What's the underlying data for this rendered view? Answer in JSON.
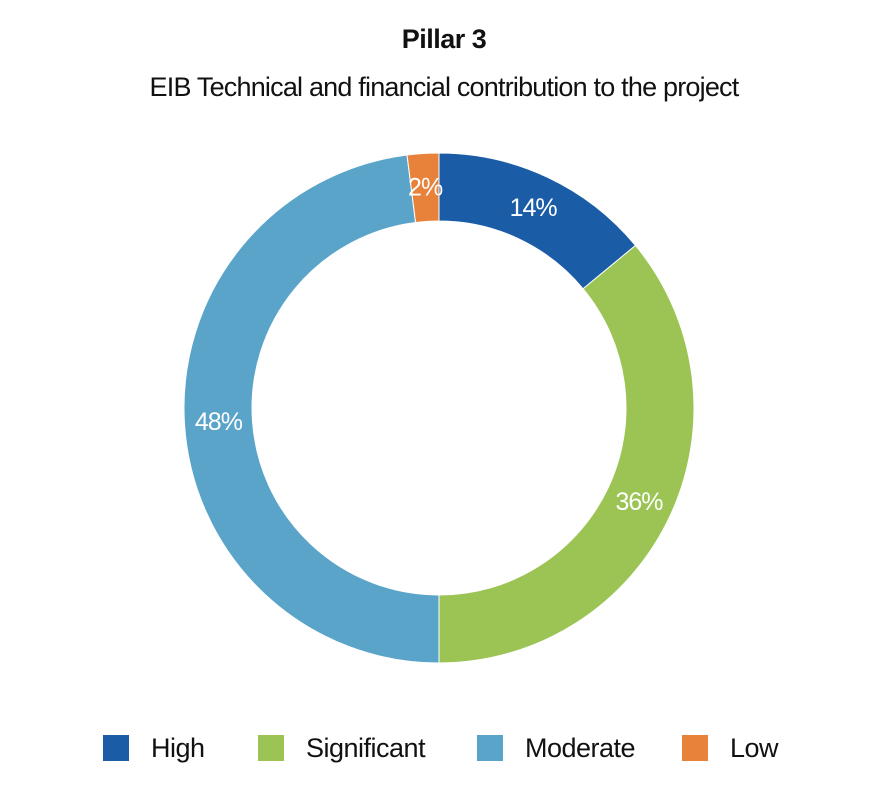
{
  "chart_data": {
    "type": "pie",
    "style": "donut",
    "title": "Pillar 3",
    "subtitle": "EIB Technical and financial contribution to the project",
    "categories": [
      "High",
      "Significant",
      "Moderate",
      "Low"
    ],
    "values": [
      14,
      36,
      48,
      2
    ],
    "value_labels": [
      "14%",
      "36%",
      "48%",
      "2%"
    ],
    "colors": [
      "#1b5ca6",
      "#9bc455",
      "#5aa4c9",
      "#e8813a"
    ],
    "start_angle": "12 o'clock",
    "direction": "clockwise",
    "legend": {
      "placement": "bottom",
      "entries": [
        "High",
        "Significant",
        "Moderate",
        "Low"
      ]
    }
  }
}
